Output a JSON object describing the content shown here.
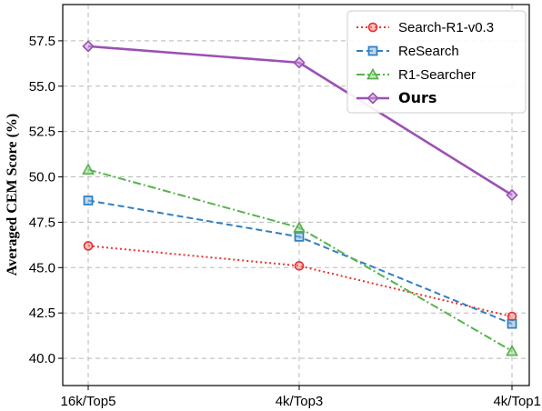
{
  "chart_data": {
    "type": "line",
    "title": "",
    "xlabel": "",
    "ylabel": "Averaged CEM Score (%)",
    "categories": [
      "16k/Top5",
      "4k/Top3",
      "4k/Top1"
    ],
    "ylim": [
      38.5,
      59.5
    ],
    "yticks": [
      "40.0",
      "42.5",
      "45.0",
      "47.5",
      "50.0",
      "52.5",
      "55.0",
      "57.5"
    ],
    "grid": true,
    "legend_position": "top-right",
    "series": [
      {
        "name": "Search-R1-v0.3",
        "values": [
          46.2,
          45.1,
          42.3
        ],
        "color": "#e8332f",
        "marker": "circle",
        "dash": "2 3",
        "bold": false
      },
      {
        "name": "ReSearch",
        "values": [
          48.7,
          46.7,
          41.9
        ],
        "color": "#2f7fc1",
        "marker": "square",
        "dash": "7 4",
        "bold": false
      },
      {
        "name": "R1-Searcher",
        "values": [
          50.4,
          47.2,
          40.4
        ],
        "color": "#55b34a",
        "marker": "triangle",
        "dash": "9 3 2 3",
        "bold": false
      },
      {
        "name": "Ours",
        "values": [
          57.2,
          56.3,
          49.0
        ],
        "color": "#9b50b5",
        "marker": "diamond",
        "dash": "",
        "bold": true
      }
    ]
  }
}
